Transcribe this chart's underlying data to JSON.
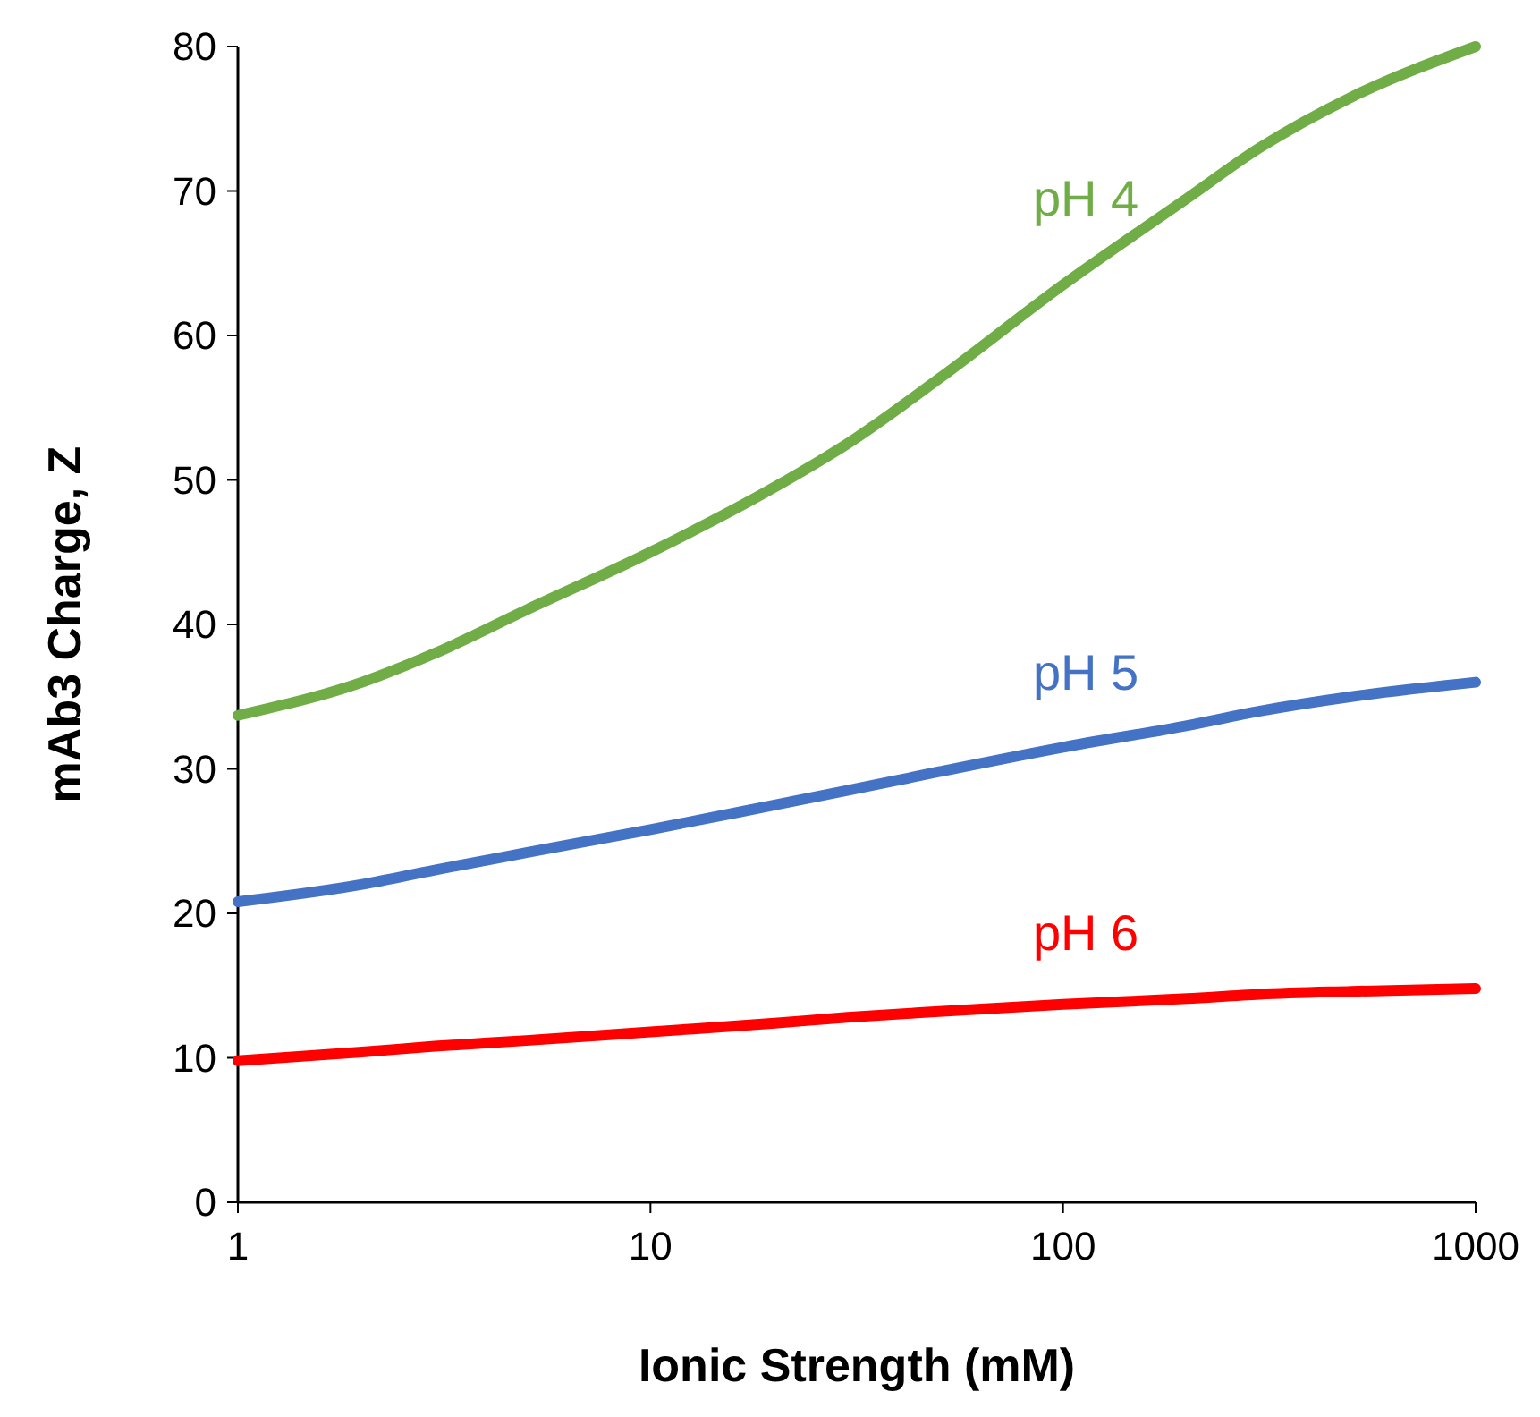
{
  "chart_data": {
    "type": "line",
    "xlabel": "Ionic Strength (mM)",
    "ylabel": "mAb3 Charge, Z",
    "log": "x",
    "xlim": [
      1,
      1000
    ],
    "ylim": [
      0,
      80
    ],
    "xticks": [
      1,
      10,
      100,
      1000
    ],
    "yticks": [
      0,
      10,
      20,
      30,
      40,
      50,
      60,
      70,
      80
    ],
    "grid": false,
    "marker": "none",
    "line_style": "solid",
    "x": [
      1,
      2,
      3,
      5,
      10,
      20,
      30,
      50,
      100,
      200,
      300,
      500,
      1000
    ],
    "series": [
      {
        "name": "pH 4",
        "color": "#70ad47",
        "values": [
          33.7,
          36,
          38,
          41,
          45,
          49.5,
          52.5,
          57,
          63.5,
          69.5,
          73,
          76.5,
          80
        ]
      },
      {
        "name": "pH 5",
        "color": "#4472c4",
        "values": [
          20.8,
          22,
          23,
          24.2,
          25.8,
          27.5,
          28.5,
          29.8,
          31.5,
          33,
          34,
          35,
          36
        ]
      },
      {
        "name": "pH 6",
        "color": "#ff0000",
        "values": [
          9.8,
          10.4,
          10.8,
          11.2,
          11.8,
          12.4,
          12.8,
          13.2,
          13.7,
          14.1,
          14.4,
          14.6,
          14.8
        ]
      }
    ]
  }
}
